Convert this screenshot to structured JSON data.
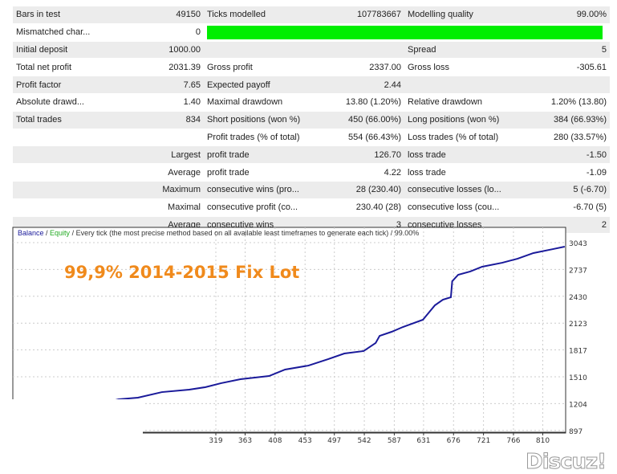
{
  "report": {
    "rows": [
      [
        "Bars in test",
        "49150",
        "Ticks modelled",
        "107783667",
        "Modelling quality",
        "99.00%"
      ],
      [
        "Mismatched char...",
        "0",
        "",
        "",
        "",
        ""
      ],
      [
        "Initial deposit",
        "1000.00",
        "",
        "",
        "Spread",
        "5"
      ],
      [
        "Total net profit",
        "2031.39",
        "Gross profit",
        "2337.00",
        "Gross loss",
        "-305.61"
      ],
      [
        "Profit factor",
        "7.65",
        "Expected payoff",
        "2.44",
        "",
        ""
      ],
      [
        "Absolute drawd...",
        "1.40",
        "Maximal drawdown",
        "13.80 (1.20%)",
        "Relative drawdown",
        "1.20% (13.80)"
      ],
      [
        "Total trades",
        "834",
        "Short positions (won %)",
        "450 (66.00%)",
        "Long positions (won %)",
        "384 (66.93%)"
      ],
      [
        "",
        "",
        "Profit trades (% of total)",
        "554 (66.43%)",
        "Loss trades (% of total)",
        "280 (33.57%)"
      ],
      [
        "",
        "Largest",
        "profit trade",
        "126.70",
        "loss trade",
        "-1.50"
      ],
      [
        "",
        "Average",
        "profit trade",
        "4.22",
        "loss trade",
        "-1.09"
      ],
      [
        "",
        "Maximum",
        "consecutive wins (pro...",
        "28 (230.40)",
        "consecutive losses (lo...",
        "5 (-6.70)"
      ],
      [
        "",
        "Maximal",
        "consecutive profit (co...",
        "230.40 (28)",
        "consecutive loss (cou...",
        "-6.70 (5)"
      ],
      [
        "",
        "Average",
        "consecutive wins",
        "3",
        "consecutive losses",
        "2"
      ]
    ],
    "modelling_quality_fraction": 0.99
  },
  "chart_data": {
    "type": "line",
    "title_parts": {
      "balance": "Balance",
      "sep1": " / ",
      "equity": "Equity",
      "rest": " / Every tick (the most precise method based on all available least timeframes to generate each tick) / 99.00%"
    },
    "annotation": "99,9% 2014-2015 Fix Lot",
    "y_ticks": [
      "3043",
      "2737",
      "2430",
      "2123",
      "1817",
      "1510",
      "1204",
      "897"
    ],
    "x_ticks": [
      "319",
      "363",
      "408",
      "453",
      "497",
      "542",
      "587",
      "631",
      "676",
      "721",
      "766",
      "810"
    ],
    "ylim": [
      897,
      3043
    ],
    "colors": {
      "balance": "#1a1a9a",
      "equity": "#22aa22",
      "annotation": "#f08a1c"
    },
    "series": [
      {
        "name": "Balance",
        "x": [
          111,
          135,
          149,
          173,
          202,
          238,
          279,
          303,
          327,
          356,
          399,
          423,
          458,
          488,
          512,
          541,
          559,
          565,
          583,
          600,
          630,
          648,
          660,
          672,
          674,
          683,
          701,
          719,
          749,
          772,
          796,
          826,
          843
        ],
        "values": [
          1152,
          1161,
          1207,
          1253,
          1271,
          1335,
          1363,
          1391,
          1437,
          1482,
          1519,
          1593,
          1638,
          1712,
          1776,
          1804,
          1896,
          1978,
          2024,
          2079,
          2162,
          2327,
          2391,
          2419,
          2602,
          2676,
          2713,
          2768,
          2813,
          2859,
          2924,
          2970,
          2997
        ]
      }
    ]
  },
  "watermark": "Discuz!"
}
